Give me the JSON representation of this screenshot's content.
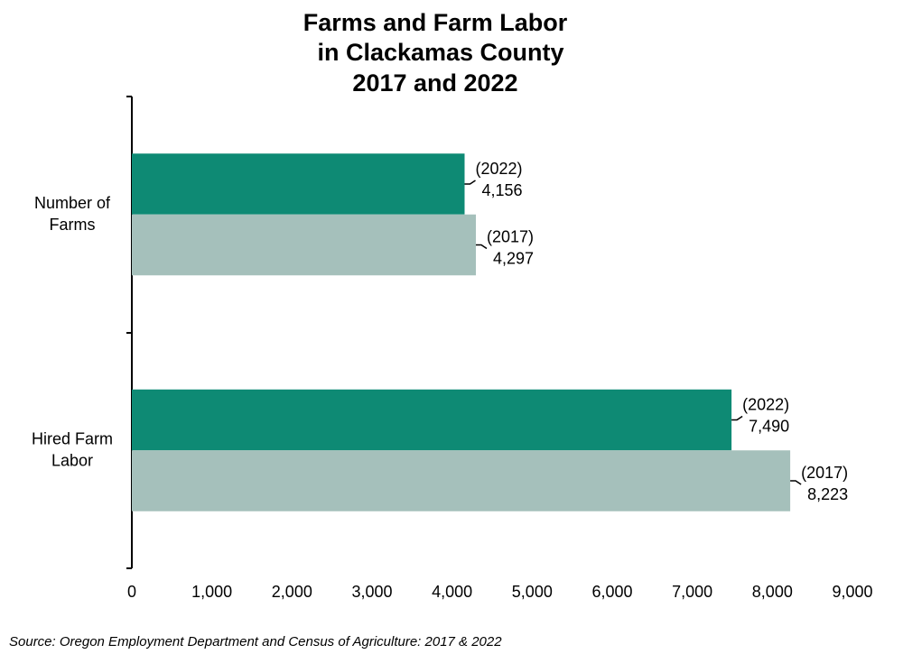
{
  "chart_data": {
    "type": "hbar",
    "title": [
      "Farms and Farm Labor",
      "in Clackamas County",
      "2017 and 2022"
    ],
    "categories": [
      "Number of Farms",
      "Hired Farm Labor"
    ],
    "series": [
      {
        "name": "(2022)",
        "color": "#0e8a74",
        "values": [
          4156,
          7490
        ],
        "value_labels": [
          "4,156",
          "7,490"
        ]
      },
      {
        "name": "(2017)",
        "color": "#a5c0bb",
        "values": [
          4297,
          8223
        ],
        "value_labels": [
          "4,297",
          "8,223"
        ]
      }
    ],
    "xlim": [
      0,
      9000
    ],
    "xticks": [
      0,
      {
        "value": 1000,
        "label": "1,000"
      },
      {
        "value": 2000,
        "label": "2,000"
      },
      {
        "value": 3000,
        "label": "3,000"
      },
      {
        "value": 4000,
        "label": "4,000"
      },
      {
        "value": 5000,
        "label": "5,000"
      },
      {
        "value": 6000,
        "label": "6,000"
      },
      {
        "value": 7000,
        "label": "7,000"
      },
      {
        "value": 8000,
        "label": "8,000"
      },
      {
        "value": 9000,
        "label": "9,000"
      }
    ],
    "source": "Source: Oregon Employment Department and Census of Agriculture: 2017 & 2022"
  }
}
